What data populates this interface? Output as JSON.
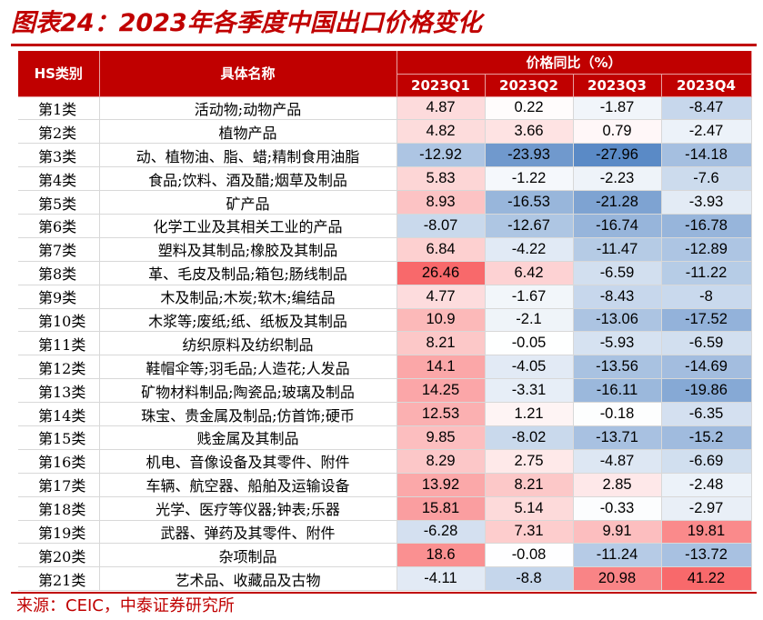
{
  "title": "图表24：2023年各季度中国出口价格变化",
  "source": "来源：CEIC，中泰证券研究所",
  "header": {
    "hs": "HS类别",
    "name": "具体名称",
    "group": "价格同比（%）",
    "quarters": [
      "2023Q1",
      "2023Q2",
      "2023Q3",
      "2023Q4"
    ]
  },
  "colors": {
    "brand": "#c00000",
    "positive": "#f8696b",
    "negative": "#5a8ac6",
    "neutral": "#ffffff"
  },
  "rows": [
    {
      "cat": "第1类",
      "name": "活动物;动物产品",
      "values": [
        4.87,
        0.22,
        -1.87,
        -8.47
      ]
    },
    {
      "cat": "第2类",
      "name": "植物产品",
      "values": [
        4.82,
        3.66,
        0.79,
        -2.47
      ]
    },
    {
      "cat": "第3类",
      "name": "动、植物油、脂、蜡;精制食用油脂",
      "values": [
        -12.92,
        -23.93,
        -27.96,
        -14.18
      ]
    },
    {
      "cat": "第4类",
      "name": "食品;饮料、酒及醋;烟草及制品",
      "values": [
        5.83,
        -1.22,
        -2.23,
        -7.6
      ]
    },
    {
      "cat": "第5类",
      "name": "矿产品",
      "values": [
        8.93,
        -16.53,
        -21.28,
        -3.93
      ]
    },
    {
      "cat": "第6类",
      "name": "化学工业及其相关工业的产品",
      "values": [
        -8.07,
        -12.67,
        -16.74,
        -16.78
      ]
    },
    {
      "cat": "第7类",
      "name": "塑料及其制品;橡胶及其制品",
      "values": [
        6.84,
        -4.22,
        -11.47,
        -12.89
      ]
    },
    {
      "cat": "第8类",
      "name": "革、毛皮及制品;箱包;肠线制品",
      "values": [
        26.46,
        6.42,
        -6.59,
        -11.22
      ]
    },
    {
      "cat": "第9类",
      "name": "木及制品;木炭;软木;编结品",
      "values": [
        4.77,
        -1.67,
        -8.43,
        -8
      ]
    },
    {
      "cat": "第10类",
      "name": "木浆等;废纸;纸、纸板及其制品",
      "values": [
        10.9,
        -2.1,
        -13.06,
        -17.52
      ]
    },
    {
      "cat": "第11类",
      "name": "纺织原料及纺织制品",
      "values": [
        8.21,
        -0.05,
        -5.93,
        -6.59
      ]
    },
    {
      "cat": "第12类",
      "name": "鞋帽伞等;羽毛品;人造花;人发品",
      "values": [
        14.1,
        -4.05,
        -13.56,
        -14.69
      ]
    },
    {
      "cat": "第13类",
      "name": "矿物材料制品;陶瓷品;玻璃及制品",
      "values": [
        14.25,
        -3.31,
        -16.11,
        -19.86
      ]
    },
    {
      "cat": "第14类",
      "name": "珠宝、贵金属及制品;仿首饰;硬币",
      "values": [
        12.53,
        1.21,
        -0.18,
        -6.35
      ]
    },
    {
      "cat": "第15类",
      "name": "贱金属及其制品",
      "values": [
        9.85,
        -8.02,
        -13.71,
        -15.2
      ]
    },
    {
      "cat": "第16类",
      "name": "机电、音像设备及其零件、附件",
      "values": [
        8.29,
        2.75,
        -4.87,
        -6.69
      ]
    },
    {
      "cat": "第17类",
      "name": "车辆、航空器、船舶及运输设备",
      "values": [
        13.92,
        8.21,
        2.85,
        -2.48
      ]
    },
    {
      "cat": "第18类",
      "name": "光学、医疗等仪器;钟表;乐器",
      "values": [
        15.81,
        5.14,
        -0.33,
        -2.97
      ]
    },
    {
      "cat": "第19类",
      "name": "武器、弹药及其零件、附件",
      "values": [
        -6.28,
        7.31,
        9.91,
        19.81
      ]
    },
    {
      "cat": "第20类",
      "name": "杂项制品",
      "values": [
        18.6,
        -0.08,
        -11.24,
        -13.72
      ]
    },
    {
      "cat": "第21类",
      "name": "艺术品、收藏品及古物",
      "values": [
        -4.11,
        -8.8,
        20.98,
        41.22
      ]
    }
  ]
}
